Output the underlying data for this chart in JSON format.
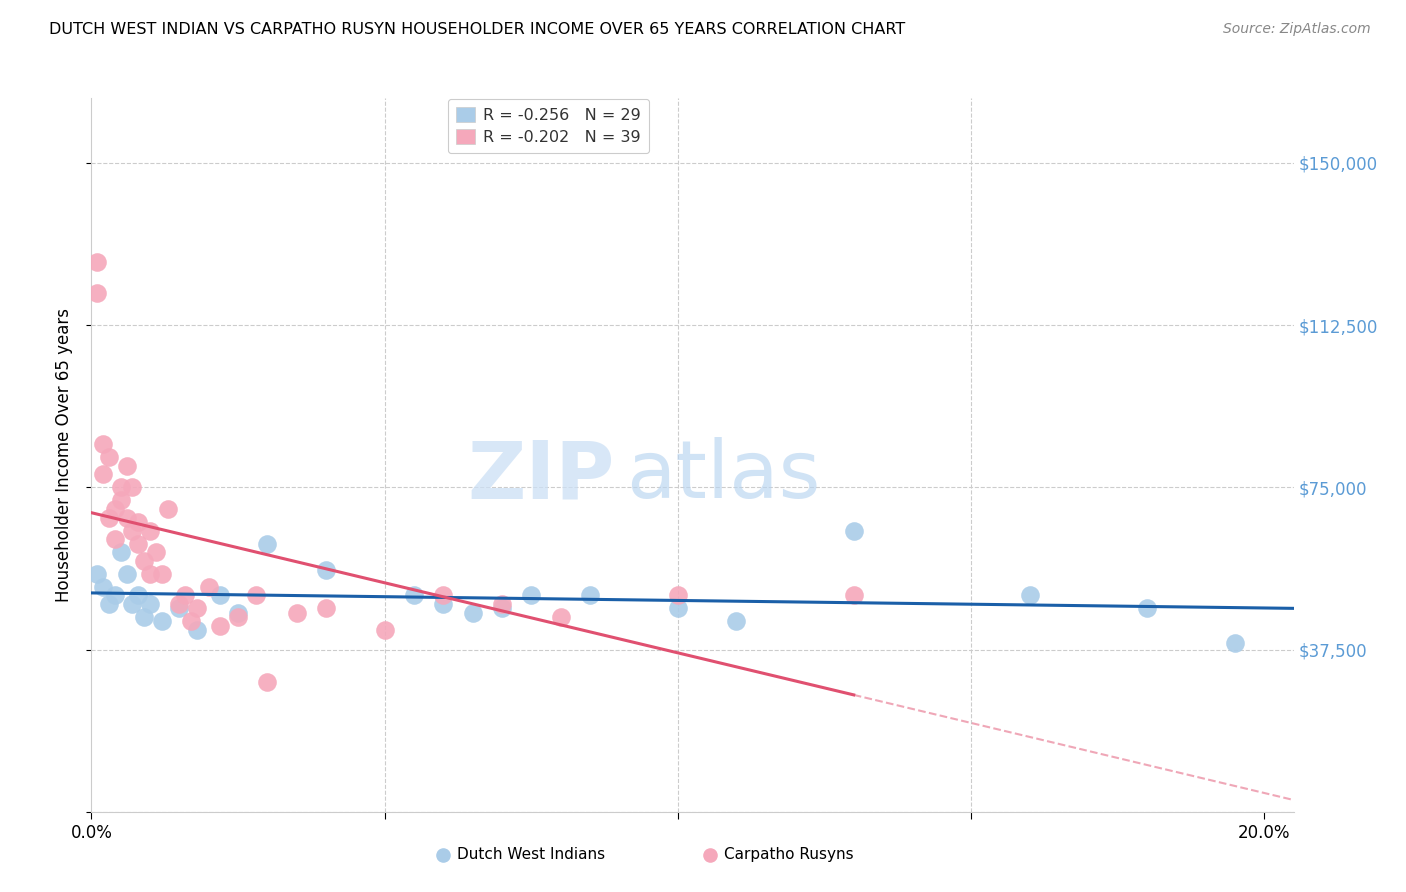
{
  "title": "DUTCH WEST INDIAN VS CARPATHO RUSYN HOUSEHOLDER INCOME OVER 65 YEARS CORRELATION CHART",
  "source": "Source: ZipAtlas.com",
  "ylabel": "Householder Income Over 65 years",
  "y_ticks": [
    0,
    37500,
    75000,
    112500,
    150000
  ],
  "y_tick_labels": [
    "",
    "$37,500",
    "$75,000",
    "$112,500",
    "$150,000"
  ],
  "x_min": 0.0,
  "x_max": 0.205,
  "y_min": 0,
  "y_max": 165000,
  "legend1_r": "R = -0.256",
  "legend1_n": "N = 29",
  "legend2_r": "R = -0.202",
  "legend2_n": "N = 39",
  "blue_color": "#aacce8",
  "pink_color": "#f5a8bb",
  "line_blue": "#1a5fa8",
  "line_pink": "#e05070",
  "dutch_x": [
    0.001,
    0.002,
    0.003,
    0.004,
    0.005,
    0.006,
    0.007,
    0.008,
    0.009,
    0.01,
    0.012,
    0.015,
    0.018,
    0.022,
    0.025,
    0.03,
    0.04,
    0.055,
    0.06,
    0.065,
    0.07,
    0.075,
    0.085,
    0.1,
    0.11,
    0.13,
    0.16,
    0.18,
    0.195
  ],
  "dutch_y": [
    55000,
    52000,
    48000,
    50000,
    60000,
    55000,
    48000,
    50000,
    45000,
    48000,
    44000,
    47000,
    42000,
    50000,
    46000,
    62000,
    56000,
    50000,
    48000,
    46000,
    47000,
    50000,
    50000,
    47000,
    44000,
    65000,
    50000,
    47000,
    39000
  ],
  "rusyn_x": [
    0.001,
    0.001,
    0.002,
    0.002,
    0.003,
    0.003,
    0.004,
    0.004,
    0.005,
    0.005,
    0.006,
    0.006,
    0.007,
    0.007,
    0.008,
    0.008,
    0.009,
    0.01,
    0.01,
    0.011,
    0.012,
    0.013,
    0.015,
    0.016,
    0.017,
    0.018,
    0.02,
    0.022,
    0.025,
    0.028,
    0.03,
    0.035,
    0.04,
    0.05,
    0.06,
    0.07,
    0.08,
    0.1,
    0.13
  ],
  "rusyn_y": [
    127000,
    120000,
    85000,
    78000,
    82000,
    68000,
    70000,
    63000,
    75000,
    72000,
    68000,
    80000,
    65000,
    75000,
    62000,
    67000,
    58000,
    65000,
    55000,
    60000,
    55000,
    70000,
    48000,
    50000,
    44000,
    47000,
    52000,
    43000,
    45000,
    50000,
    30000,
    46000,
    47000,
    42000,
    50000,
    48000,
    45000,
    50000,
    50000
  ]
}
